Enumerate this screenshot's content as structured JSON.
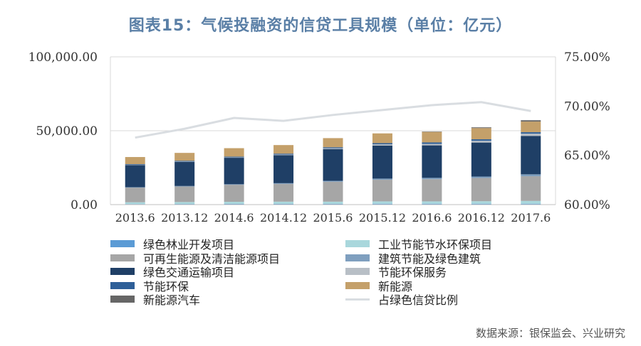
{
  "title": "图表15：气候投融资的信贷工具规模（单位：亿元）",
  "source": "数据来源：银保监会、兴业研究",
  "chart_data": {
    "type": "bar",
    "stacked": true,
    "categories": [
      "2013.6",
      "2013.12",
      "2014.6",
      "2014.12",
      "2015.6",
      "2015.12",
      "2016.6",
      "2016.12",
      "2017.6"
    ],
    "y_left": {
      "ylim": [
        0,
        100000
      ],
      "ticks": [
        "0.00",
        "50,000.00",
        "100,000.00"
      ],
      "tick_values": [
        0,
        50000,
        100000
      ]
    },
    "y_right": {
      "ylim": [
        0.6,
        0.75
      ],
      "ticks": [
        "60.00%",
        "65.00%",
        "70.00%",
        "75.00%"
      ],
      "tick_values": [
        0.6,
        0.65,
        0.7,
        0.75
      ]
    },
    "grid": "horizontal",
    "legend_position": "bottom",
    "series": [
      {
        "name": "绿色林业开发项目",
        "color": "#5b9bd5",
        "axis": "left",
        "values": [
          400,
          450,
          500,
          500,
          500,
          600,
          600,
          600,
          600
        ]
      },
      {
        "name": "工业节能节水环保项目",
        "color": "#a9d7dc",
        "axis": "left",
        "values": [
          1200,
          1300,
          1400,
          1500,
          1500,
          1600,
          1600,
          1700,
          1900
        ]
      },
      {
        "name": "可再生能源及清洁能源项目",
        "color": "#a6a6a6",
        "axis": "left",
        "values": [
          9900,
          10500,
          11500,
          12000,
          13500,
          14600,
          15000,
          15700,
          16700
        ]
      },
      {
        "name": "建筑节能及绿色建筑",
        "color": "#7f9fbf",
        "axis": "left",
        "values": [
          300,
          350,
          400,
          500,
          600,
          800,
          900,
          1000,
          1300
        ]
      },
      {
        "name": "绿色交通运输项目",
        "color": "#1f3f66",
        "axis": "left",
        "values": [
          15000,
          16400,
          17900,
          19000,
          21400,
          22400,
          22000,
          23000,
          26000
        ]
      },
      {
        "name": "节能环保服务",
        "color": "#b8bfc6",
        "axis": "left",
        "values": [
          200,
          200,
          300,
          400,
          600,
          800,
          1000,
          1200,
          1500
        ]
      },
      {
        "name": "节能环保",
        "color": "#2e5f98",
        "axis": "left",
        "values": [
          400,
          500,
          500,
          600,
          700,
          800,
          1000,
          1000,
          1000
        ]
      },
      {
        "name": "新能源",
        "color": "#c4a06a",
        "axis": "left",
        "values": [
          4800,
          5300,
          5700,
          5800,
          6200,
          6600,
          7200,
          7600,
          7200
        ]
      },
      {
        "name": "新能源汽车",
        "color": "#666666",
        "axis": "left",
        "values": [
          0,
          0,
          0,
          0,
          0,
          0,
          100,
          500,
          900
        ]
      },
      {
        "name": "占绿色信贷比例",
        "color": "#d9dde1",
        "axis": "right",
        "type": "line",
        "values": [
          0.668,
          0.677,
          0.688,
          0.685,
          0.691,
          0.696,
          0.701,
          0.704,
          0.695
        ]
      }
    ]
  }
}
